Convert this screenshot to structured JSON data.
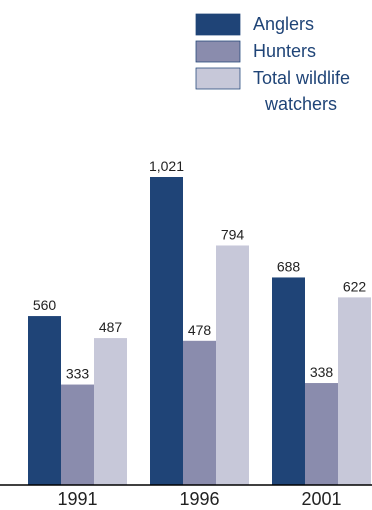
{
  "chart_data": {
    "type": "bar",
    "title": "",
    "xlabel": "",
    "ylabel": "",
    "categories": [
      "1991",
      "1996",
      "2001"
    ],
    "series": [
      {
        "name": "Anglers",
        "values": [
          560,
          1021,
          688
        ],
        "labels": [
          "560",
          "1,021",
          "688"
        ],
        "color": "#1f4477"
      },
      {
        "name": "Hunters",
        "values": [
          333,
          478,
          338
        ],
        "labels": [
          "333",
          "478",
          "338"
        ],
        "color": "#8a8cad"
      },
      {
        "name": "Total wildlife watchers",
        "values": [
          487,
          794,
          622
        ],
        "labels": [
          "487",
          "794",
          "622"
        ],
        "color": "#c7c8d9"
      }
    ],
    "legend_lines": [
      [
        "Anglers"
      ],
      [
        "Hunters"
      ],
      [
        "Total wildlife",
        "watchers"
      ]
    ],
    "ylim": [
      0,
      1021
    ],
    "grid": false,
    "legend_position": "top-right"
  }
}
